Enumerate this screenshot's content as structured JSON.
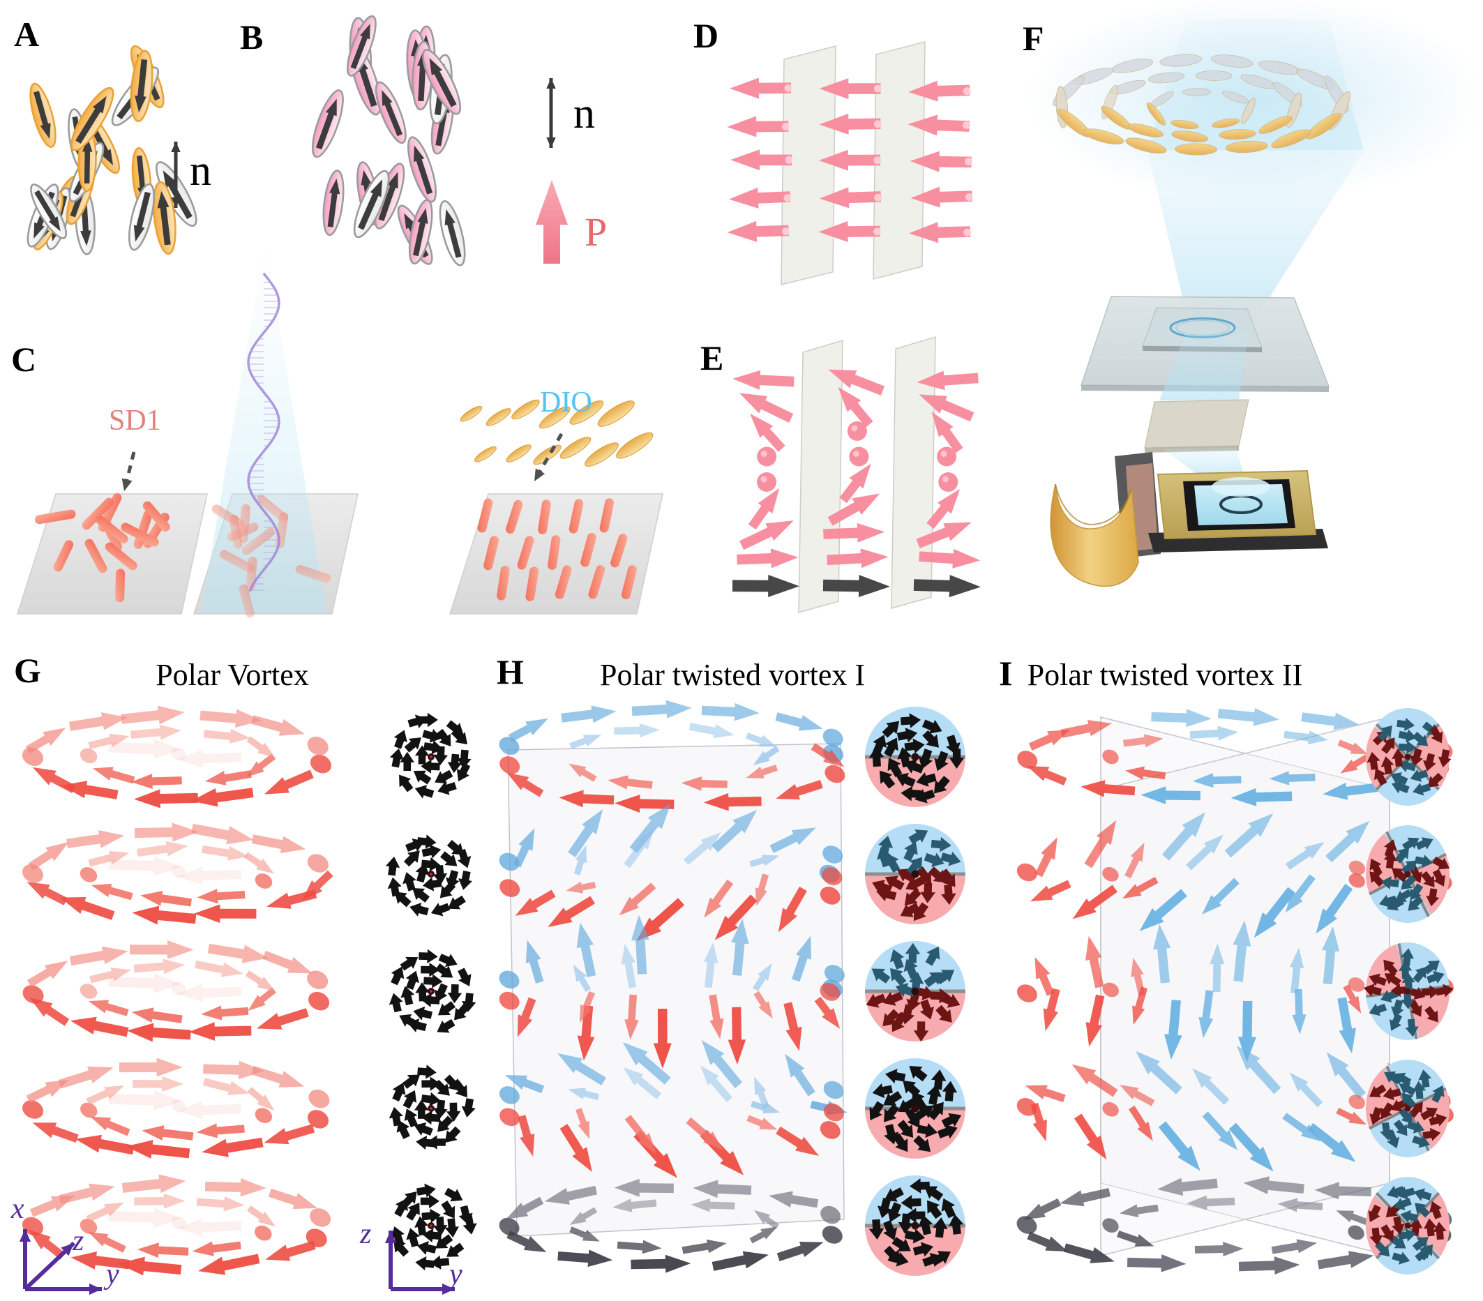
{
  "panels": {
    "A": {
      "label": "A",
      "director": "n",
      "molecule_count": 20,
      "description": "nematic phase, apolar molecules"
    },
    "B": {
      "label": "B",
      "director": "n",
      "polarization": "P",
      "molecule_count": 20,
      "description": "ferroelectric nematic, polar molecules"
    },
    "C": {
      "label": "C",
      "coating_label": "SD1",
      "dopant_label": "DIO",
      "description": "photoalignment: SD1 coated plate, polarized light exposure, DIO molecules aligned"
    },
    "D": {
      "label": "D",
      "description": "uniform polarization between two plates",
      "arrow_rows": 5,
      "arrow_cols": 3
    },
    "E": {
      "label": "E",
      "description": "twisted polarization between two plates",
      "arrow_cols": 3
    },
    "F": {
      "label": "F",
      "description": "projection setup: light cone with director rings, sample cell, waveplate, DMD chip with gold ribbon"
    },
    "G": {
      "label": "G",
      "title": "Polar Vortex",
      "layers": 5
    },
    "H": {
      "label": "H",
      "title": "Polar twisted vortex I",
      "layers": 5
    },
    "I": {
      "label": "I",
      "title": "Polar twisted vortex II",
      "layers": 5
    }
  },
  "axes": {
    "bottom_left": {
      "up": "x",
      "diagonal": "z",
      "right": "y"
    },
    "bottom_mid": {
      "up": "z",
      "right": "y"
    }
  },
  "colors": {
    "polar_red": "#ee4b41",
    "polar_red_light": "#f28a80",
    "twist_blue": "#63aadd",
    "twist_blue_light": "#8fc1e8",
    "gray_arrow": "#55555f",
    "gray_arrow_dark": "#3f3f49",
    "pink_arrow": "#f8899b",
    "black_arrow": "#121212",
    "inset_blue_bg": "#b5ddf6",
    "inset_pink_bg": "#f7abaf",
    "inset_dark_red": "#6d1414",
    "inset_dark_teal": "#2a5a70",
    "molecule_arrow": "#3c3c3c",
    "sd1_label_color": "#e2837b",
    "dio_label_color": "#54c3f1",
    "polarization_color": "#e4696b",
    "axis_purple": "#552d9b",
    "light_beam": "#cfeaf4",
    "gold": "#d9a441",
    "nematic_orange": "#f3b45c",
    "ferroelectric_pink": "#f6a8c6",
    "rod_salmon": "#f4806c",
    "dio_gold": "#eab254"
  }
}
